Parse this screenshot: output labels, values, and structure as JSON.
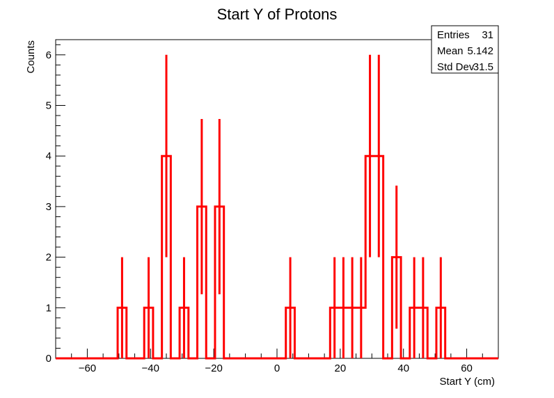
{
  "chart_data": {
    "type": "histogram",
    "title": "Start Y of Protons",
    "xlabel": "Start Y (cm)",
    "ylabel": "Counts",
    "xlim": [
      -70,
      70
    ],
    "ylim": [
      0,
      6.3
    ],
    "bin_width": 2.8,
    "x_ticks": [
      -60,
      -40,
      -20,
      0,
      20,
      40,
      60
    ],
    "x_tick_labels": [
      "−60",
      "−40",
      "−20",
      "0",
      "20",
      "40",
      "60"
    ],
    "y_ticks": [
      0,
      1,
      2,
      3,
      4,
      5,
      6
    ],
    "y_tick_labels": [
      "0",
      "1",
      "2",
      "3",
      "4",
      "5",
      "6"
    ],
    "line_color": "#ff0000",
    "bins": [
      {
        "x": -49.0,
        "count": 1
      },
      {
        "x": -40.6,
        "count": 1
      },
      {
        "x": -35.0,
        "count": 4
      },
      {
        "x": -29.4,
        "count": 1
      },
      {
        "x": -23.8,
        "count": 3
      },
      {
        "x": -18.2,
        "count": 3
      },
      {
        "x": 4.2,
        "count": 1
      },
      {
        "x": 18.2,
        "count": 1
      },
      {
        "x": 21.0,
        "count": 1
      },
      {
        "x": 23.8,
        "count": 1
      },
      {
        "x": 26.6,
        "count": 1
      },
      {
        "x": 29.4,
        "count": 4
      },
      {
        "x": 32.2,
        "count": 4
      },
      {
        "x": 37.8,
        "count": 2
      },
      {
        "x": 43.4,
        "count": 1
      },
      {
        "x": 46.2,
        "count": 1
      },
      {
        "x": 51.8,
        "count": 1
      }
    ],
    "stats": {
      "rows": [
        {
          "label": "Entries",
          "value": "31"
        },
        {
          "label": "Mean",
          "value": "5.142"
        },
        {
          "label": "Std Dev",
          "value": "31.5"
        }
      ]
    }
  }
}
